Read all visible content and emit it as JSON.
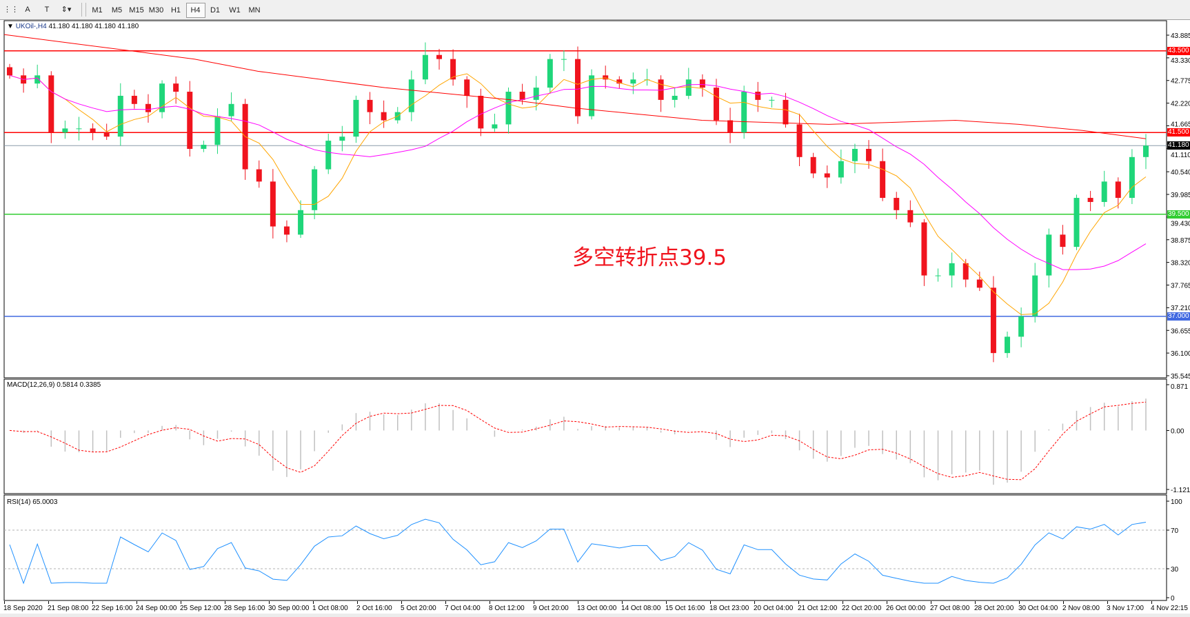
{
  "toolbar": {
    "tools": [
      {
        "name": "grid-icon",
        "glyph": "⋮⋮"
      },
      {
        "name": "text-icon",
        "glyph": "A"
      },
      {
        "name": "text-label-icon",
        "glyph": "T"
      },
      {
        "name": "arrows-icon",
        "glyph": "⇕▾"
      }
    ],
    "timeframes": [
      "M1",
      "M5",
      "M15",
      "M30",
      "H1",
      "H4",
      "D1",
      "W1",
      "MN"
    ],
    "active_timeframe": "H4"
  },
  "main": {
    "symbol": "UKOil-,H4",
    "ohlc": "41.180 41.180 41.180 41.180",
    "price_ticks": [
      "43.885",
      "43.330",
      "42.775",
      "42.220",
      "41.665",
      "41.110",
      "40.540",
      "39.985",
      "39.430",
      "38.875",
      "38.320",
      "37.765",
      "37.210",
      "36.655",
      "36.100",
      "35.545"
    ],
    "price_range": [
      35.545,
      43.885
    ],
    "annotation": "多空转折点39.5",
    "levels": [
      {
        "label": "43.500",
        "value": 43.5,
        "color": "#ff0000"
      },
      {
        "label": "41.500",
        "value": 41.5,
        "color": "#ff0000"
      },
      {
        "label": "41.180",
        "value": 41.18,
        "color": "#000000",
        "line": "#8a9aa8"
      },
      {
        "label": "39.500",
        "value": 39.5,
        "color": "#32cd32"
      },
      {
        "label": "37.000",
        "value": 37.0,
        "color": "#4169e1"
      }
    ],
    "colors": {
      "bull": "#1fd67a",
      "bear": "#f0141e",
      "ma_fast": "#ffa500",
      "ma_mid": "#ff00ff",
      "ma_slow": "#ff0000"
    }
  },
  "chart_data": {
    "type": "candlestick",
    "closes": [
      42.9,
      42.7,
      42.9,
      41.5,
      41.6,
      41.6,
      41.5,
      41.4,
      42.4,
      42.2,
      42.0,
      42.7,
      42.5,
      41.1,
      41.2,
      41.9,
      42.2,
      40.6,
      40.3,
      39.2,
      39.0,
      39.6,
      40.6,
      41.3,
      41.4,
      42.3,
      42.0,
      41.8,
      42.0,
      42.8,
      43.4,
      43.3,
      42.8,
      42.4,
      41.6,
      41.7,
      42.5,
      42.3,
      42.6,
      43.3,
      43.3,
      41.9,
      42.9,
      42.8,
      42.7,
      42.8,
      42.8,
      42.3,
      42.4,
      42.8,
      42.6,
      41.8,
      41.5,
      42.5,
      42.3,
      42.3,
      41.7,
      40.9,
      40.5,
      40.4,
      40.8,
      41.1,
      40.8,
      39.9,
      39.6,
      39.3,
      38.0,
      38.0,
      38.3,
      37.9,
      37.7,
      36.1,
      36.5,
      37.0,
      38.0,
      39.0,
      38.7,
      39.9,
      39.8,
      40.3,
      39.9,
      40.9,
      41.18
    ],
    "ma_slow": [
      43.9,
      43.7,
      43.5,
      43.3,
      43.0,
      42.8,
      42.6,
      42.45,
      42.3,
      42.1,
      41.95,
      41.8,
      41.75,
      41.7,
      41.75,
      41.8,
      41.7,
      41.55,
      41.35
    ],
    "time_labels": [
      "18 Sep 2020",
      "21 Sep 08:00",
      "22 Sep 16:00",
      "24 Sep 00:00",
      "25 Sep 12:00",
      "28 Sep 16:00",
      "30 Sep 00:00",
      "1 Oct 08:00",
      "2 Oct 16:00",
      "5 Oct 20:00",
      "7 Oct 04:00",
      "8 Oct 12:00",
      "9 Oct 20:00",
      "13 Oct 00:00",
      "14 Oct 08:00",
      "15 Oct 16:00",
      "18 Oct 23:00",
      "20 Oct 04:00",
      "21 Oct 12:00",
      "22 Oct 20:00",
      "26 Oct 00:00",
      "27 Oct 08:00",
      "28 Oct 20:00",
      "30 Oct 04:00",
      "2 Nov 08:00",
      "3 Nov 17:00",
      "4 Nov 22:15"
    ]
  },
  "macd": {
    "label": "MACD(12,26,9) 0.5814 0.3385",
    "ticks": [
      "0.871",
      "0.00",
      "-1.1215"
    ],
    "range": [
      -1.1215,
      0.871
    ],
    "histogram_color": "#c0c0c0",
    "signal_color": "#ff0000"
  },
  "rsi": {
    "label": "RSI(14) 65.0003",
    "ticks": [
      "100",
      "70",
      "30",
      "0"
    ],
    "levels": [
      70,
      30
    ],
    "color": "#1e90ff"
  }
}
